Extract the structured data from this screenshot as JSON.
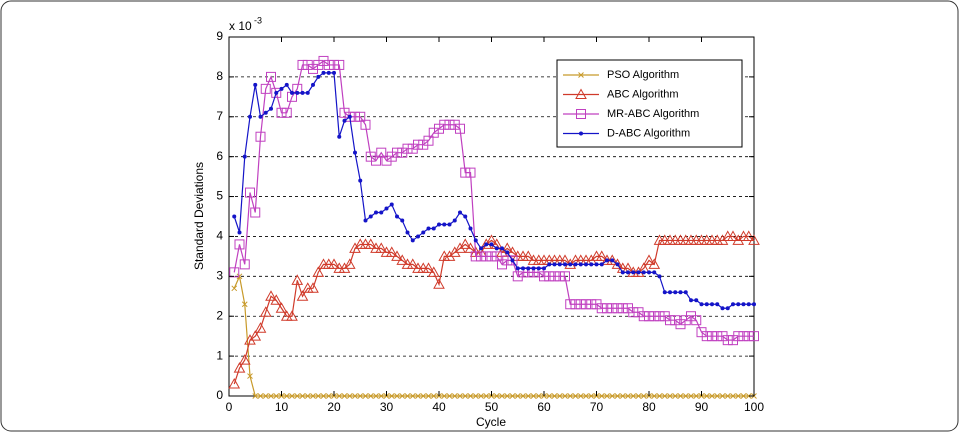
{
  "chart_data": {
    "type": "line",
    "x_label": "Cycle",
    "y_label": "Standard Deviations",
    "y_scale_base": "x 10",
    "y_scale_exponent": "-3",
    "xlim": [
      0,
      100
    ],
    "ylim": [
      0,
      9
    ],
    "xticks": [
      0,
      10,
      20,
      30,
      40,
      50,
      60,
      70,
      80,
      90,
      100
    ],
    "yticks": [
      0,
      1,
      2,
      3,
      4,
      5,
      6,
      7,
      8,
      9
    ],
    "grid": true,
    "legend": "top-right",
    "x": [
      1,
      2,
      3,
      4,
      5,
      6,
      7,
      8,
      9,
      10,
      11,
      12,
      13,
      14,
      15,
      16,
      17,
      18,
      19,
      20,
      21,
      22,
      23,
      24,
      25,
      26,
      27,
      28,
      29,
      30,
      31,
      32,
      33,
      34,
      35,
      36,
      37,
      38,
      39,
      40,
      41,
      42,
      43,
      44,
      45,
      46,
      47,
      48,
      49,
      50,
      51,
      52,
      53,
      54,
      55,
      56,
      57,
      58,
      59,
      60,
      61,
      62,
      63,
      64,
      65,
      66,
      67,
      68,
      69,
      70,
      71,
      72,
      73,
      74,
      75,
      76,
      77,
      78,
      79,
      80,
      81,
      82,
      83,
      84,
      85,
      86,
      87,
      88,
      89,
      90,
      91,
      92,
      93,
      94,
      95,
      96,
      97,
      98,
      99,
      100
    ],
    "series": [
      {
        "name": "PSO Algorithm",
        "color": "#c89a2a",
        "marker": "x",
        "values": [
          2.7,
          3.0,
          2.3,
          0.5,
          0,
          0,
          0,
          0,
          0,
          0,
          0,
          0,
          0,
          0,
          0,
          0,
          0,
          0,
          0,
          0,
          0,
          0,
          0,
          0,
          0,
          0,
          0,
          0,
          0,
          0,
          0,
          0,
          0,
          0,
          0,
          0,
          0,
          0,
          0,
          0,
          0,
          0,
          0,
          0,
          0,
          0,
          0,
          0,
          0,
          0,
          0,
          0,
          0,
          0,
          0,
          0,
          0,
          0,
          0,
          0,
          0,
          0,
          0,
          0,
          0,
          0,
          0,
          0,
          0,
          0,
          0,
          0,
          0,
          0,
          0,
          0,
          0,
          0,
          0,
          0,
          0,
          0,
          0,
          0,
          0,
          0,
          0,
          0,
          0,
          0,
          0,
          0,
          0,
          0,
          0,
          0,
          0,
          0,
          0,
          0
        ]
      },
      {
        "name": "ABC Algorithm",
        "color": "#d03a2a",
        "marker": "triangle",
        "values": [
          0.3,
          0.7,
          0.9,
          1.4,
          1.5,
          1.7,
          2.1,
          2.5,
          2.4,
          2.2,
          2.0,
          2.0,
          2.9,
          2.5,
          2.7,
          2.7,
          3.1,
          3.3,
          3.3,
          3.3,
          3.2,
          3.2,
          3.3,
          3.7,
          3.8,
          3.8,
          3.8,
          3.7,
          3.7,
          3.6,
          3.6,
          3.5,
          3.4,
          3.3,
          3.3,
          3.2,
          3.2,
          3.2,
          3.1,
          2.8,
          3.5,
          3.5,
          3.6,
          3.7,
          3.8,
          3.7,
          3.6,
          3.6,
          3.8,
          3.9,
          3.8,
          3.6,
          3.7,
          3.6,
          3.5,
          3.5,
          3.5,
          3.4,
          3.4,
          3.4,
          3.4,
          3.4,
          3.4,
          3.4,
          3.3,
          3.4,
          3.4,
          3.4,
          3.4,
          3.5,
          3.5,
          3.4,
          3.4,
          3.3,
          3.2,
          3.2,
          3.1,
          3.1,
          3.2,
          3.4,
          3.3,
          3.9,
          3.9,
          3.9,
          3.9,
          3.9,
          3.9,
          3.9,
          3.9,
          3.9,
          3.9,
          3.9,
          3.9,
          3.9,
          4.0,
          4.0,
          3.9,
          4.0,
          4.0,
          3.9
        ]
      },
      {
        "name": "MR-ABC Algorithm",
        "color": "#c040c0",
        "marker": "square",
        "values": [
          3.1,
          3.8,
          3.3,
          5.1,
          4.6,
          6.5,
          7.7,
          8.0,
          7.6,
          7.1,
          7.1,
          7.5,
          7.7,
          8.3,
          8.3,
          8.2,
          8.3,
          8.4,
          8.3,
          8.3,
          8.3,
          7.1,
          7.0,
          7.0,
          7.0,
          6.8,
          6.0,
          5.9,
          6.1,
          5.9,
          6.0,
          6.1,
          6.1,
          6.2,
          6.2,
          6.3,
          6.3,
          6.4,
          6.6,
          6.7,
          6.8,
          6.8,
          6.8,
          6.7,
          5.6,
          5.6,
          3.5,
          3.5,
          3.5,
          3.5,
          3.5,
          3.3,
          3.4,
          3.4,
          3.0,
          3.1,
          3.1,
          3.1,
          3.1,
          3.0,
          3.0,
          3.0,
          3.0,
          3.0,
          2.3,
          2.3,
          2.3,
          2.3,
          2.3,
          2.3,
          2.2,
          2.2,
          2.2,
          2.2,
          2.2,
          2.2,
          2.1,
          2.1,
          2.0,
          2.0,
          2.0,
          2.0,
          2.0,
          1.9,
          1.9,
          1.8,
          1.9,
          2.0,
          1.9,
          1.6,
          1.5,
          1.5,
          1.5,
          1.5,
          1.4,
          1.4,
          1.5,
          1.5,
          1.5,
          1.5
        ]
      },
      {
        "name": "D-ABC Algorithm",
        "color": "#1414c8",
        "marker": "dot",
        "values": [
          4.5,
          4.1,
          6.0,
          7.0,
          7.8,
          7.0,
          7.1,
          7.2,
          7.6,
          7.7,
          7.8,
          7.6,
          7.6,
          7.6,
          7.6,
          7.8,
          8.0,
          8.1,
          8.1,
          8.1,
          6.5,
          6.9,
          7.0,
          6.1,
          5.4,
          4.4,
          4.5,
          4.6,
          4.6,
          4.7,
          4.8,
          4.5,
          4.4,
          4.1,
          3.9,
          4.0,
          4.1,
          4.2,
          4.2,
          4.3,
          4.3,
          4.3,
          4.4,
          4.6,
          4.5,
          4.2,
          3.9,
          3.7,
          3.8,
          3.8,
          3.7,
          3.7,
          3.6,
          3.4,
          3.2,
          3.2,
          3.2,
          3.2,
          3.2,
          3.2,
          3.3,
          3.3,
          3.3,
          3.3,
          3.3,
          3.3,
          3.3,
          3.3,
          3.3,
          3.3,
          3.3,
          3.4,
          3.4,
          3.3,
          3.1,
          3.1,
          3.1,
          3.1,
          3.1,
          3.1,
          3.1,
          3.0,
          2.6,
          2.6,
          2.6,
          2.6,
          2.6,
          2.4,
          2.4,
          2.3,
          2.3,
          2.3,
          2.3,
          2.2,
          2.2,
          2.3,
          2.3,
          2.3,
          2.3,
          2.3
        ]
      }
    ]
  }
}
